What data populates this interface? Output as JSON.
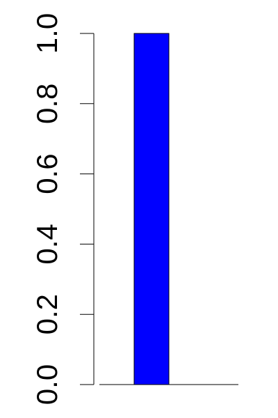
{
  "chart_data": {
    "type": "bar",
    "categories": [
      "",
      "",
      ""
    ],
    "values": [
      1.0,
      0.0,
      0.0
    ],
    "ylim": [
      0,
      1.0
    ],
    "yticks": [
      0.0,
      0.2,
      0.4,
      0.6,
      0.8,
      1.0
    ],
    "ytick_labels": [
      "0.0",
      "0.2",
      "0.4",
      "0.6",
      "0.8",
      "1.0"
    ],
    "bar_color": "#0000ff",
    "grid": false,
    "legend": "none"
  }
}
